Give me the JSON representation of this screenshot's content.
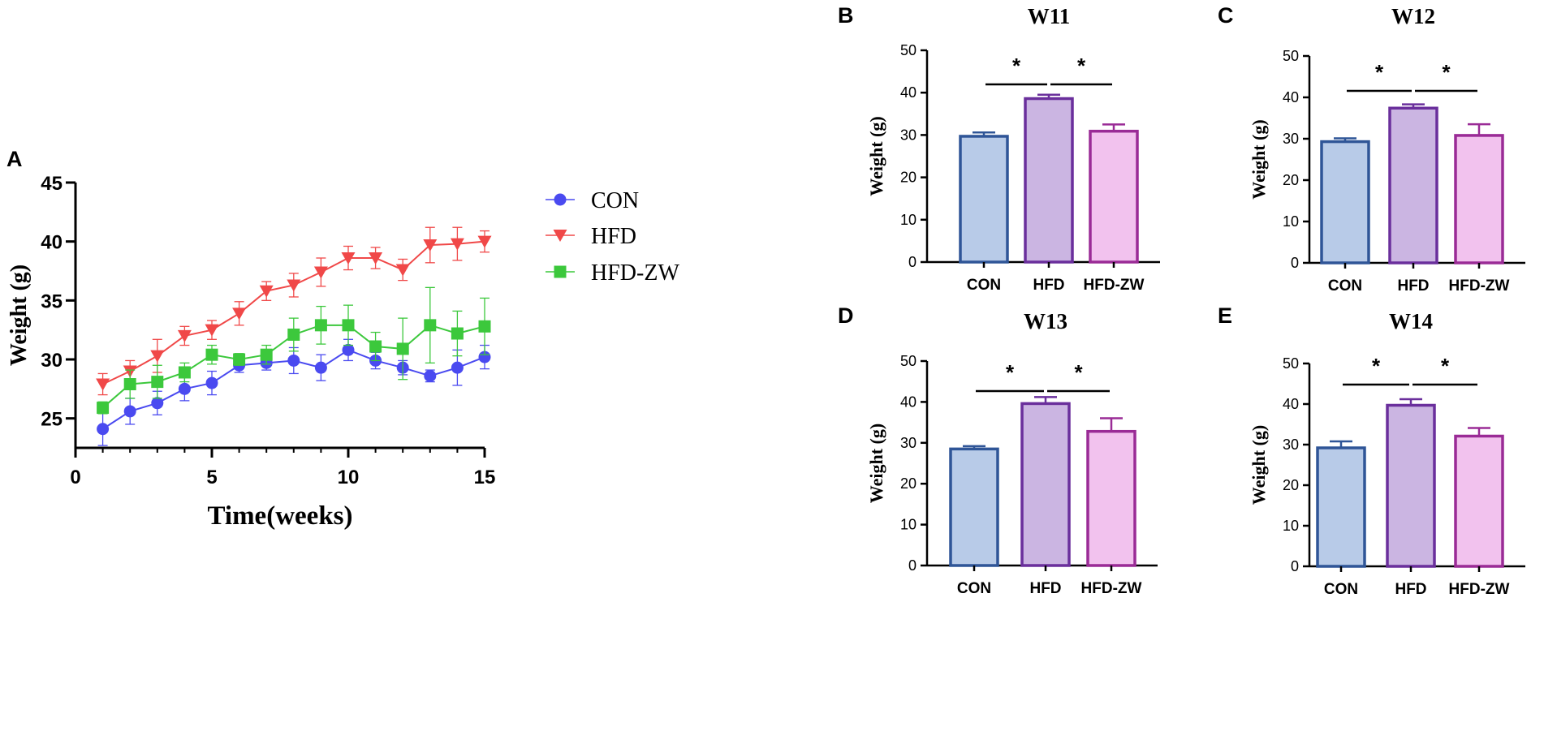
{
  "colors": {
    "CON": "#4a4af0",
    "HFD": "#f04848",
    "HFD-ZW": "#3cc83c",
    "bar_CON_fill": "#b8cbe8",
    "bar_CON_stroke": "#2f5597",
    "bar_HFD_fill": "#cbb5e2",
    "bar_HFD_stroke": "#6a2f9c",
    "bar_HFDZW_fill": "#f2c2ee",
    "bar_HFDZW_stroke": "#9a2b96"
  },
  "chart_data": [
    {
      "id": "A",
      "type": "line",
      "panel_label": "A",
      "xlabel": "Time(weeks)",
      "ylabel": "Weight (g)",
      "xlim": [
        0,
        15
      ],
      "ylim": [
        22.5,
        45
      ],
      "xticks": [
        0,
        5,
        10,
        15
      ],
      "yticks": [
        25,
        30,
        35,
        40,
        45
      ],
      "legend_position": "right",
      "x": [
        1,
        2,
        3,
        4,
        5,
        6,
        7,
        8,
        9,
        10,
        11,
        12,
        13,
        14,
        15
      ],
      "series": [
        {
          "name": "CON",
          "marker": "circle",
          "values": [
            24.1,
            25.6,
            26.3,
            27.5,
            28.0,
            29.5,
            29.7,
            29.9,
            29.3,
            30.8,
            29.9,
            29.3,
            28.6,
            29.3,
            30.2
          ],
          "errors": [
            1.4,
            1.1,
            1.0,
            1.0,
            1.0,
            0.6,
            0.6,
            1.1,
            1.1,
            0.9,
            0.7,
            0.6,
            0.5,
            1.5,
            1.0
          ]
        },
        {
          "name": "HFD",
          "marker": "triangle-down",
          "values": [
            27.9,
            29.0,
            30.3,
            32.0,
            32.5,
            33.9,
            35.8,
            36.3,
            37.4,
            38.6,
            38.6,
            37.6,
            39.7,
            39.8,
            40.0
          ],
          "errors": [
            0.9,
            0.9,
            1.4,
            0.8,
            0.8,
            1.0,
            0.8,
            1.0,
            1.2,
            1.0,
            0.9,
            0.9,
            1.5,
            1.4,
            0.9
          ]
        },
        {
          "name": "HFD-ZW",
          "marker": "square",
          "values": [
            25.9,
            27.9,
            28.1,
            28.9,
            30.4,
            30.0,
            30.4,
            32.1,
            32.9,
            32.9,
            31.1,
            30.9,
            32.9,
            32.2,
            32.8
          ],
          "errors": [
            0.5,
            1.2,
            1.4,
            0.8,
            0.8,
            0.5,
            0.8,
            1.4,
            1.6,
            1.7,
            1.2,
            2.6,
            3.2,
            1.9,
            2.4
          ]
        }
      ]
    },
    {
      "id": "B",
      "type": "bar",
      "panel_label": "B",
      "title": "W11",
      "ylabel": "Weight (g)",
      "ylim": [
        0,
        50
      ],
      "yticks": [
        0,
        10,
        20,
        30,
        40,
        50
      ],
      "categories": [
        "CON",
        "HFD",
        "HFD-ZW"
      ],
      "values": [
        29.7,
        38.6,
        30.9
      ],
      "errors": [
        0.9,
        0.9,
        1.6
      ],
      "significance": [
        "*",
        "*"
      ]
    },
    {
      "id": "C",
      "type": "bar",
      "panel_label": "C",
      "title": "W12",
      "ylabel": "Weight (g)",
      "ylim": [
        0,
        50
      ],
      "yticks": [
        0,
        10,
        20,
        30,
        40,
        50
      ],
      "categories": [
        "CON",
        "HFD",
        "HFD-ZW"
      ],
      "values": [
        29.3,
        37.4,
        30.8
      ],
      "errors": [
        0.8,
        0.9,
        2.7
      ],
      "significance": [
        "*",
        "*"
      ]
    },
    {
      "id": "D",
      "type": "bar",
      "panel_label": "D",
      "title": "W13",
      "ylabel": "Weight (g)",
      "ylim": [
        0,
        50
      ],
      "yticks": [
        0,
        10,
        20,
        30,
        40,
        50
      ],
      "categories": [
        "CON",
        "HFD",
        "HFD-ZW"
      ],
      "values": [
        28.5,
        39.6,
        32.8
      ],
      "errors": [
        0.7,
        1.6,
        3.2
      ],
      "significance": [
        "*",
        "*"
      ]
    },
    {
      "id": "E",
      "type": "bar",
      "panel_label": "E",
      "title": "W14",
      "ylabel": "Weight (g)",
      "ylim": [
        0,
        50
      ],
      "yticks": [
        0,
        10,
        20,
        30,
        40,
        50
      ],
      "categories": [
        "CON",
        "HFD",
        "HFD-ZW"
      ],
      "values": [
        29.2,
        39.7,
        32.1
      ],
      "errors": [
        1.6,
        1.5,
        2.0
      ],
      "significance": [
        "*",
        "*"
      ]
    }
  ]
}
